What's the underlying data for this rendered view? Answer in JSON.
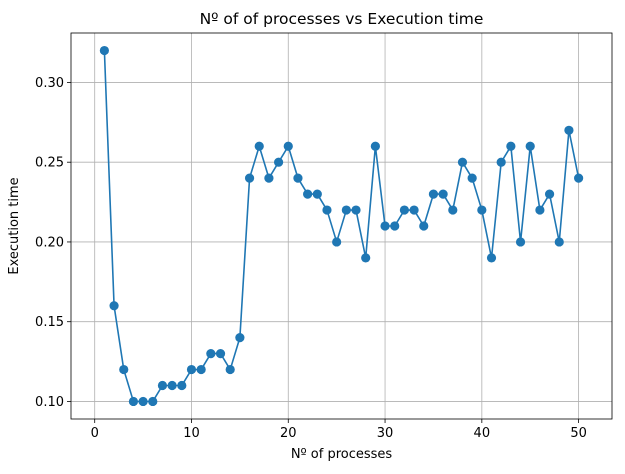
{
  "chart_data": {
    "type": "line",
    "title": "Nº of of processes vs Execution time",
    "xlabel": "Nº of processes",
    "ylabel": "Execution time",
    "xlim": [
      -2.45,
      53.45
    ],
    "ylim": [
      0.089,
      0.331
    ],
    "xticks": [
      0,
      10,
      20,
      30,
      40,
      50
    ],
    "xtick_labels": [
      "0",
      "10",
      "20",
      "30",
      "40",
      "50"
    ],
    "yticks": [
      0.1,
      0.15,
      0.2,
      0.25,
      0.3
    ],
    "ytick_labels": [
      "0.10",
      "0.15",
      "0.20",
      "0.25",
      "0.30"
    ],
    "grid": true,
    "markers": true,
    "color": "#1f77b4",
    "series": [
      {
        "x": [
          1,
          2,
          3,
          4,
          5,
          6,
          7,
          8,
          9,
          10,
          11,
          12,
          13,
          14,
          15,
          16,
          17,
          18,
          19,
          20,
          21,
          22,
          23,
          24,
          25,
          26,
          27,
          28,
          29,
          30,
          31,
          32,
          33,
          34,
          35,
          36,
          37,
          38,
          39,
          40,
          41,
          42,
          43,
          44,
          45,
          46,
          47,
          48,
          49,
          50
        ],
        "values": [
          0.32,
          0.16,
          0.12,
          0.1,
          0.1,
          0.1,
          0.11,
          0.11,
          0.11,
          0.12,
          0.12,
          0.13,
          0.13,
          0.12,
          0.14,
          0.24,
          0.26,
          0.24,
          0.25,
          0.26,
          0.24,
          0.23,
          0.23,
          0.22,
          0.2,
          0.22,
          0.22,
          0.19,
          0.26,
          0.21,
          0.21,
          0.22,
          0.22,
          0.21,
          0.23,
          0.23,
          0.22,
          0.25,
          0.24,
          0.22,
          0.19,
          0.25,
          0.26,
          0.2,
          0.26,
          0.22,
          0.23,
          0.2,
          0.27,
          0.24
        ]
      }
    ]
  }
}
